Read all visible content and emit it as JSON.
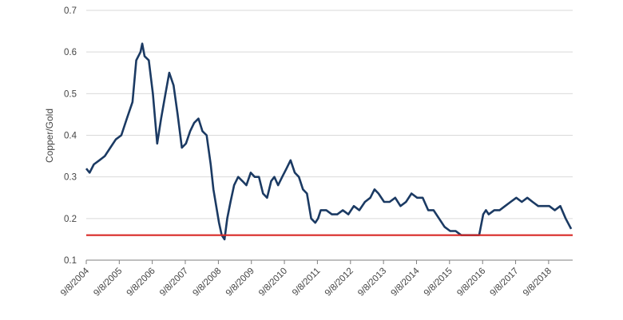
{
  "chart_data": {
    "type": "line",
    "title": "",
    "xlabel": "",
    "ylabel": "Copper/Gold",
    "ylim": [
      0.1,
      0.7
    ],
    "yticks": [
      0.1,
      0.2,
      0.3,
      0.4,
      0.5,
      0.6,
      0.7
    ],
    "ytick_labels": [
      "0.1",
      "0.2",
      "0.3",
      "0.4",
      "0.5",
      "0.6",
      "0.7"
    ],
    "xlim": [
      "2004-09-08",
      "2019-06-01"
    ],
    "xticks": [
      "2004-09-08",
      "2005-09-08",
      "2006-09-08",
      "2007-09-08",
      "2008-09-08",
      "2009-09-08",
      "2010-09-08",
      "2011-09-08",
      "2012-09-08",
      "2013-09-08",
      "2014-09-08",
      "2015-09-08",
      "2016-09-08",
      "2017-09-08",
      "2018-09-08"
    ],
    "xtick_labels": [
      "9/8/2004",
      "9/8/2005",
      "9/8/2006",
      "9/8/2007",
      "9/8/2008",
      "9/8/2009",
      "9/8/2010",
      "9/8/2011",
      "9/8/2012",
      "9/8/2013",
      "9/8/2014",
      "9/8/2015",
      "9/8/2016",
      "9/8/2017",
      "9/8/2018"
    ],
    "grid": "horizontal",
    "legend": "none",
    "series": [
      {
        "color": "#1b3a63",
        "x": [
          "2004-09-08",
          "2004-10-15",
          "2004-12-01",
          "2005-02-01",
          "2005-04-01",
          "2005-06-01",
          "2005-08-01",
          "2005-10-01",
          "2005-12-01",
          "2006-02-01",
          "2006-03-15",
          "2006-05-01",
          "2006-05-20",
          "2006-06-15",
          "2006-08-01",
          "2006-09-15",
          "2006-11-01",
          "2006-12-15",
          "2007-02-01",
          "2007-03-15",
          "2007-05-01",
          "2007-06-15",
          "2007-08-01",
          "2007-09-15",
          "2007-11-01",
          "2007-12-15",
          "2008-02-01",
          "2008-03-15",
          "2008-05-01",
          "2008-06-15",
          "2008-07-15",
          "2008-08-15",
          "2008-09-15",
          "2008-10-15",
          "2008-11-15",
          "2008-12-15",
          "2009-01-20",
          "2009-03-01",
          "2009-04-15",
          "2009-06-01",
          "2009-07-15",
          "2009-09-01",
          "2009-10-15",
          "2009-12-01",
          "2010-01-15",
          "2010-03-01",
          "2010-04-15",
          "2010-05-20",
          "2010-07-01",
          "2010-08-15",
          "2010-10-01",
          "2010-11-15",
          "2011-01-01",
          "2011-02-15",
          "2011-04-01",
          "2011-05-15",
          "2011-07-01",
          "2011-08-15",
          "2011-09-15",
          "2011-10-15",
          "2011-12-15",
          "2012-02-15",
          "2012-04-15",
          "2012-06-15",
          "2012-08-15",
          "2012-10-15",
          "2012-12-15",
          "2013-02-15",
          "2013-04-15",
          "2013-06-01",
          "2013-07-15",
          "2013-09-15",
          "2013-11-15",
          "2014-01-15",
          "2014-03-15",
          "2014-05-15",
          "2014-07-15",
          "2014-09-15",
          "2014-11-15",
          "2015-01-15",
          "2015-03-15",
          "2015-05-15",
          "2015-07-15",
          "2015-09-15",
          "2015-11-15",
          "2016-01-15",
          "2016-03-01",
          "2016-05-01",
          "2016-06-15",
          "2016-08-01",
          "2016-09-15",
          "2016-10-15",
          "2016-11-15",
          "2017-01-15",
          "2017-03-15",
          "2017-05-15",
          "2017-07-15",
          "2017-09-15",
          "2017-11-15",
          "2018-01-15",
          "2018-03-15",
          "2018-05-15",
          "2018-07-15",
          "2018-09-15",
          "2018-11-15",
          "2019-01-15",
          "2019-03-15",
          "2019-05-15"
        ],
        "y": [
          0.32,
          0.31,
          0.33,
          0.34,
          0.35,
          0.37,
          0.39,
          0.4,
          0.44,
          0.48,
          0.58,
          0.6,
          0.62,
          0.59,
          0.58,
          0.5,
          0.38,
          0.44,
          0.5,
          0.55,
          0.52,
          0.45,
          0.37,
          0.38,
          0.41,
          0.43,
          0.44,
          0.41,
          0.4,
          0.33,
          0.27,
          0.23,
          0.19,
          0.16,
          0.15,
          0.2,
          0.24,
          0.28,
          0.3,
          0.29,
          0.28,
          0.31,
          0.3,
          0.3,
          0.26,
          0.25,
          0.29,
          0.3,
          0.28,
          0.3,
          0.32,
          0.34,
          0.31,
          0.3,
          0.27,
          0.26,
          0.2,
          0.19,
          0.2,
          0.22,
          0.22,
          0.21,
          0.21,
          0.22,
          0.21,
          0.23,
          0.22,
          0.24,
          0.25,
          0.27,
          0.26,
          0.24,
          0.24,
          0.25,
          0.23,
          0.24,
          0.26,
          0.25,
          0.25,
          0.22,
          0.22,
          0.2,
          0.18,
          0.17,
          0.17,
          0.16,
          0.16,
          0.16,
          0.16,
          0.16,
          0.21,
          0.22,
          0.21,
          0.22,
          0.22,
          0.23,
          0.24,
          0.25,
          0.24,
          0.25,
          0.24,
          0.23,
          0.23,
          0.23,
          0.22,
          0.23,
          0.2,
          0.175
        ]
      }
    ],
    "reference_line": {
      "y": 0.16,
      "color": "#d82a27"
    }
  }
}
